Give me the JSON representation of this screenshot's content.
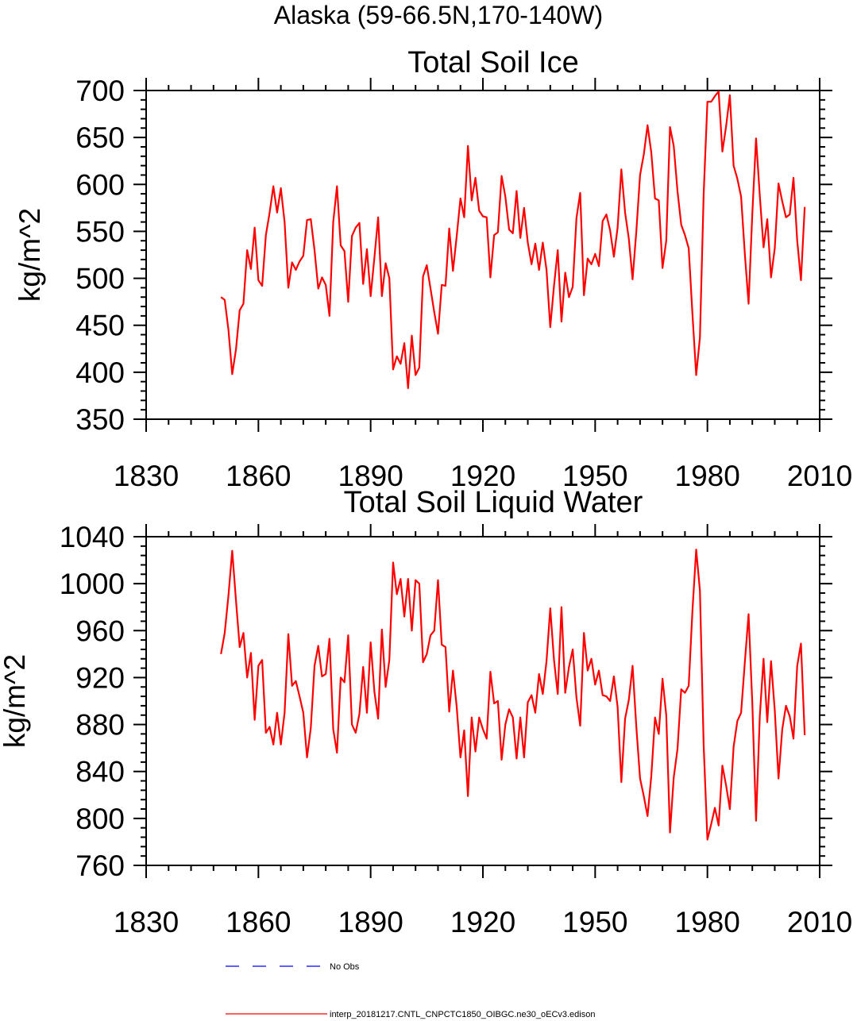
{
  "figure_title": "Alaska (59-66.5N,170-140W)",
  "colors": {
    "series": "#ff0000",
    "obs": "#0000ff",
    "frame": "#000000"
  },
  "legend": [
    {
      "label": "No Obs",
      "color": "#0000ff",
      "style": "dashed"
    },
    {
      "label": "interp_20181217.CNTL_CNPCTC1850_OIBGC.ne30_oECv3.edison",
      "color": "#ff0000",
      "style": "solid"
    }
  ],
  "chart_data": [
    {
      "type": "line",
      "title": "Total Soil Ice",
      "xlabel": "",
      "ylabel": "kg/m^2",
      "xlim": [
        1830,
        2010
      ],
      "ylim": [
        350,
        700
      ],
      "xticks": [
        1830,
        1860,
        1890,
        1920,
        1950,
        1980,
        2010
      ],
      "xtick_labels": [
        "1830",
        "1860",
        "1890",
        "1920",
        "1950",
        "1980",
        "2010"
      ],
      "yticks": [
        350,
        400,
        450,
        500,
        550,
        600,
        650,
        700
      ],
      "ytick_labels": [
        "350",
        "400",
        "450",
        "500",
        "550",
        "600",
        "650",
        "700"
      ],
      "series": [
        {
          "name": "interp_20181217.CNTL_CNPCTC1850_OIBGC.ne30_oECv3.edison",
          "x_start": 1850,
          "values": [
            480,
            477,
            445,
            398,
            424,
            466,
            473,
            530,
            510,
            554,
            498,
            492,
            546,
            570,
            598,
            570,
            596,
            560,
            490,
            517,
            509,
            518,
            524,
            562,
            563,
            530,
            489,
            501,
            493,
            460,
            560,
            598,
            535,
            529,
            475,
            545,
            554,
            559,
            494,
            531,
            481,
            522,
            565,
            481,
            516,
            500,
            403,
            417,
            409,
            431,
            383,
            439,
            397,
            405,
            502,
            514,
            489,
            464,
            441,
            493,
            492,
            553,
            508,
            545,
            585,
            565,
            641,
            583,
            607,
            572,
            566,
            565,
            501,
            546,
            549,
            609,
            587,
            552,
            548,
            593,
            543,
            575,
            538,
            515,
            537,
            509,
            538,
            509,
            448,
            492,
            530,
            454,
            506,
            480,
            491,
            564,
            591,
            482,
            521,
            515,
            526,
            513,
            561,
            568,
            551,
            523,
            554,
            616,
            570,
            542,
            499,
            550,
            610,
            632,
            663,
            634,
            585,
            583,
            511,
            540,
            661,
            641,
            593,
            557,
            546,
            532,
            462,
            397,
            437,
            590,
            688,
            688,
            694,
            699,
            635,
            662,
            695,
            620,
            606,
            587,
            526,
            473,
            569,
            649,
            588,
            533,
            563,
            501,
            532,
            601,
            582,
            565,
            568,
            607,
            540,
            498,
            576
          ]
        }
      ]
    },
    {
      "type": "line",
      "title": "Total Soil Liquid Water",
      "xlabel": "",
      "ylabel": "kg/m^2",
      "xlim": [
        1830,
        2010
      ],
      "ylim": [
        760,
        1040
      ],
      "xticks": [
        1830,
        1860,
        1890,
        1920,
        1950,
        1980,
        2010
      ],
      "xtick_labels": [
        "1830",
        "1860",
        "1890",
        "1920",
        "1950",
        "1980",
        "2010"
      ],
      "yticks": [
        760,
        800,
        840,
        880,
        920,
        960,
        1000,
        1040
      ],
      "ytick_labels": [
        "760",
        "800",
        "840",
        "880",
        "920",
        "960",
        "1000",
        "1040"
      ],
      "series": [
        {
          "name": "interp_20181217.CNTL_CNPCTC1850_OIBGC.ne30_oECv3.edison",
          "x_start": 1850,
          "values": [
            940,
            958,
            990,
            1028,
            986,
            946,
            958,
            920,
            941,
            884,
            930,
            935,
            873,
            878,
            863,
            890,
            863,
            890,
            957,
            913,
            917,
            904,
            890,
            852,
            877,
            930,
            947,
            921,
            923,
            953,
            876,
            856,
            920,
            916,
            956,
            880,
            873,
            889,
            929,
            890,
            950,
            908,
            885,
            961,
            912,
            935,
            1018,
            991,
            1004,
            972,
            1004,
            960,
            1003,
            1000,
            933,
            940,
            956,
            960,
            1003,
            948,
            946,
            891,
            926,
            895,
            852,
            875,
            819,
            886,
            857,
            886,
            876,
            868,
            925,
            898,
            900,
            850,
            880,
            893,
            886,
            851,
            886,
            852,
            899,
            905,
            890,
            923,
            906,
            934,
            979,
            935,
            906,
            980,
            907,
            929,
            944,
            903,
            879,
            958,
            926,
            936,
            914,
            926,
            905,
            904,
            900,
            921,
            895,
            831,
            885,
            901,
            930,
            878,
            834,
            819,
            802,
            836,
            886,
            872,
            919,
            888,
            788,
            835,
            859,
            910,
            907,
            913,
            977,
            1029,
            994,
            862,
            782,
            795,
            809,
            794,
            845,
            828,
            808,
            861,
            883,
            890,
            933,
            974,
            898,
            798,
            887,
            936,
            882,
            934,
            892,
            834,
            876,
            896,
            887,
            868,
            930,
            949,
            871
          ]
        }
      ]
    }
  ]
}
